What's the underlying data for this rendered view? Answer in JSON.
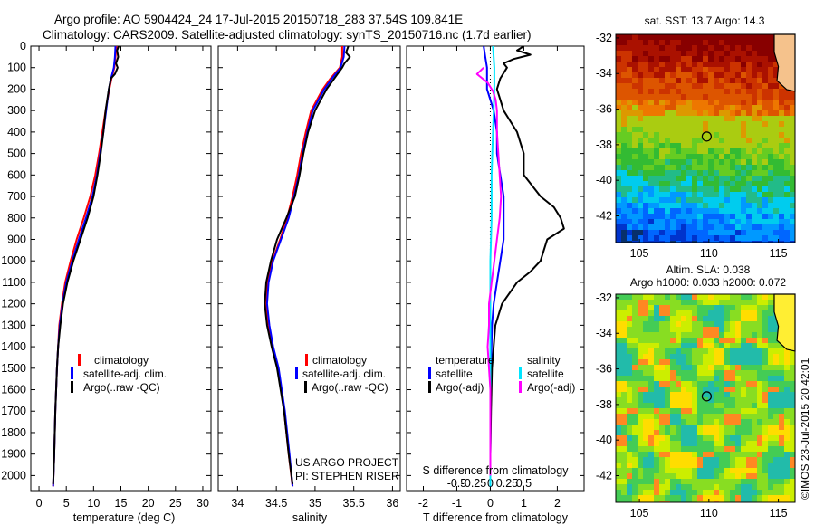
{
  "header": {
    "title_line1": "Argo profile: AO 5904424_24 17-Jul-2015 20150718_283 37.54S 109.841E",
    "title_line2": "Climatology: CARS2009. Satellite-adjusted climatology: synTS_20150716.nc (1.7d earlier)"
  },
  "credits": {
    "project": "US ARGO PROJECT",
    "pi": "PI: STEPHEN RISER",
    "stamp": "©IMOS 23-Jul-2015 20:42:01"
  },
  "colors": {
    "climatology": "#ff0000",
    "satellite": "#0000ff",
    "argo": "#000000",
    "satellite_s": "#00e5ff",
    "argo_s": "#ff00ff"
  },
  "chart_data": [
    {
      "type": "line",
      "name": "temperature-profile",
      "xlabel": "temperature (deg C)",
      "xlim": [
        -1.5,
        31.5
      ],
      "ylim": [
        2070,
        0
      ],
      "y_ticks": [
        0,
        100,
        200,
        300,
        400,
        500,
        600,
        700,
        800,
        900,
        1000,
        1100,
        1200,
        1300,
        1400,
        1500,
        1600,
        1700,
        1800,
        1900,
        2000
      ],
      "x_ticks": [
        0,
        5,
        10,
        15,
        20,
        25,
        30
      ],
      "legend": [
        "climatology",
        "satellite-adj. clim.",
        "Argo(..raw -QC)"
      ],
      "series": [
        {
          "name": "climatology",
          "color": "#ff0000",
          "depth": [
            0,
            50,
            100,
            150,
            200,
            300,
            400,
            500,
            600,
            700,
            800,
            900,
            1000,
            1100,
            1200,
            1300,
            1400,
            1500,
            1700,
            1900,
            2050
          ],
          "values": [
            14.2,
            14.0,
            13.8,
            13.3,
            12.9,
            12.2,
            11.6,
            11.0,
            10.3,
            9.4,
            8.2,
            6.9,
            5.8,
            4.8,
            4.2,
            3.7,
            3.5,
            3.3,
            3.0,
            2.8,
            2.6
          ]
        },
        {
          "name": "satellite-adj. clim.",
          "color": "#0000ff",
          "depth": [
            0,
            50,
            100,
            150,
            200,
            300,
            400,
            500,
            600,
            700,
            800,
            900,
            1000,
            1100,
            1200,
            1300,
            1400,
            1500,
            1700,
            1900,
            2050
          ],
          "values": [
            14.0,
            13.9,
            13.7,
            13.2,
            12.8,
            12.3,
            11.8,
            11.2,
            10.6,
            9.8,
            8.6,
            7.3,
            6.1,
            5.0,
            4.3,
            3.8,
            3.5,
            3.3,
            3.0,
            2.8,
            2.6
          ]
        },
        {
          "name": "Argo(..raw -QC)",
          "color": "#000000",
          "depth": [
            0,
            20,
            50,
            80,
            100,
            130,
            150,
            200,
            300,
            400,
            500,
            600,
            700,
            800,
            900,
            1000,
            1100,
            1200,
            1300,
            1400,
            1500,
            1700,
            1900,
            2040
          ],
          "values": [
            14.6,
            14.3,
            14.5,
            14.1,
            14.4,
            13.9,
            13.2,
            12.8,
            12.2,
            11.8,
            11.3,
            10.7,
            10.0,
            8.9,
            7.6,
            6.3,
            5.2,
            4.4,
            3.9,
            3.5,
            3.3,
            3.0,
            2.8,
            2.6
          ]
        }
      ]
    },
    {
      "type": "line",
      "name": "salinity-profile",
      "xlabel": "salinity",
      "xlim": [
        33.75,
        36.1
      ],
      "ylim": [
        2070,
        0
      ],
      "x_ticks": [
        34,
        34.5,
        35,
        35.5,
        36
      ],
      "legend": [
        "climatology",
        "satellite-adj. clim.",
        "Argo(..raw -QC)"
      ],
      "series": [
        {
          "name": "climatology",
          "color": "#ff0000",
          "depth": [
            0,
            50,
            100,
            150,
            200,
            300,
            400,
            500,
            600,
            700,
            800,
            900,
            1000,
            1100,
            1200,
            1300,
            1400,
            1500,
            1700,
            1900,
            2050
          ],
          "values": [
            35.35,
            35.35,
            35.32,
            35.2,
            35.1,
            34.95,
            34.88,
            34.82,
            34.77,
            34.71,
            34.64,
            34.55,
            34.45,
            34.39,
            34.37,
            34.4,
            34.45,
            34.52,
            34.6,
            34.66,
            34.71
          ]
        },
        {
          "name": "satellite-adj. clim.",
          "color": "#0000ff",
          "depth": [
            0,
            50,
            100,
            150,
            200,
            300,
            400,
            500,
            600,
            700,
            800,
            900,
            1000,
            1100,
            1200,
            1300,
            1400,
            1500,
            1700,
            1900,
            2050
          ],
          "values": [
            35.38,
            35.37,
            35.33,
            35.22,
            35.12,
            34.97,
            34.9,
            34.84,
            34.79,
            34.73,
            34.66,
            34.56,
            34.46,
            34.4,
            34.38,
            34.41,
            34.46,
            34.53,
            34.61,
            34.67,
            34.71
          ]
        },
        {
          "name": "Argo(..raw -QC)",
          "color": "#000000",
          "depth": [
            0,
            30,
            50,
            80,
            100,
            150,
            200,
            300,
            400,
            500,
            600,
            700,
            800,
            900,
            1000,
            1100,
            1200,
            1300,
            1400,
            1500,
            1700,
            1900,
            2040
          ],
          "values": [
            35.43,
            35.4,
            35.45,
            35.38,
            35.35,
            35.25,
            35.15,
            35.0,
            34.91,
            34.85,
            34.8,
            34.74,
            34.63,
            34.51,
            34.43,
            34.37,
            34.35,
            34.38,
            34.44,
            34.51,
            34.6,
            34.66,
            34.71
          ]
        }
      ]
    },
    {
      "type": "line",
      "name": "difference-profile",
      "xlabel": "T difference from climatology",
      "xlabel_top": "S difference from climatology",
      "xlim": [
        -2.5,
        2.8
      ],
      "x_ticks": [
        -2,
        -1,
        0,
        1,
        2
      ],
      "x_ticks_s": [
        -0.5,
        -0.25,
        0,
        0.25,
        0.5
      ],
      "ylim": [
        2070,
        0
      ],
      "legend_temperature": [
        "temperature",
        "satellite",
        "Argo(-adj)"
      ],
      "legend_salinity": [
        "salinity",
        "satellite",
        "Argo(-adj)"
      ],
      "series": [
        {
          "name": "T satellite",
          "color": "#0000ff",
          "depth": [
            0,
            50,
            100,
            200,
            300,
            400,
            500,
            600,
            700,
            800,
            900,
            1000,
            1100,
            1200,
            1300,
            1500,
            1700,
            1900,
            2050
          ],
          "values": [
            -0.2,
            -0.15,
            -0.1,
            -0.1,
            0.1,
            0.2,
            0.2,
            0.3,
            0.4,
            0.4,
            0.4,
            0.3,
            0.2,
            0.1,
            0.05,
            0.02,
            0.01,
            0.0,
            0.0
          ]
        },
        {
          "name": "T Argo(-adj)",
          "color": "#000000",
          "depth": [
            0,
            20,
            40,
            60,
            80,
            100,
            150,
            200,
            300,
            400,
            500,
            600,
            700,
            750,
            800,
            850,
            900,
            950,
            1000,
            1050,
            1100,
            1200,
            1300,
            1500,
            1700,
            1900,
            2040
          ],
          "values": [
            1.0,
            0.8,
            1.2,
            0.7,
            0.4,
            0.5,
            0.3,
            0.2,
            0.4,
            0.8,
            1.0,
            1.0,
            1.5,
            1.9,
            2.1,
            2.2,
            1.7,
            1.6,
            1.5,
            1.2,
            0.8,
            0.35,
            0.15,
            0.05,
            0.02,
            0.0,
            0.0
          ]
        },
        {
          "name": "S satellite",
          "color": "#00e5ff",
          "depth": [
            0,
            100,
            200,
            400,
            600,
            800,
            1000,
            1200,
            1400,
            1600,
            1800,
            2050
          ],
          "values": [
            0.02,
            0.03,
            0.03,
            0.02,
            0.01,
            0.01,
            0.0,
            0.0,
            0.0,
            0.0,
            0.0,
            0.0
          ]
        },
        {
          "name": "S Argo(-adj)",
          "color": "#ff00ff",
          "depth": [
            100,
            130,
            150,
            170,
            190,
            210,
            250,
            300,
            400,
            500,
            600,
            700,
            800,
            900,
            1000,
            1100,
            1200,
            1300,
            1400,
            1500,
            1600,
            1700,
            1800,
            1900,
            2000
          ],
          "values": [
            -0.05,
            -0.1,
            -0.06,
            -0.02,
            0.0,
            0.02,
            0.04,
            0.05,
            0.05,
            0.06,
            0.07,
            0.08,
            0.07,
            0.05,
            0.03,
            0.01,
            -0.01,
            -0.01,
            -0.02,
            -0.01,
            0.0,
            0.0,
            0.0,
            0.0,
            0.0
          ]
        }
      ]
    },
    {
      "type": "heatmap",
      "name": "sst-map",
      "title": "sat. SST: 13.7  Argo: 14.3",
      "x_ticks": [
        105,
        110,
        115
      ],
      "y_ticks": [
        -32,
        -34,
        -36,
        -38,
        -40,
        -42
      ],
      "xlim": [
        103.3,
        116.2
      ],
      "ylim": [
        -43.5,
        -31.8
      ],
      "marker": {
        "lon": 109.841,
        "lat": -37.54
      }
    },
    {
      "type": "heatmap",
      "name": "sla-map",
      "title_line1": "Altim. SLA: 0.038",
      "title_line2": "Argo h1000: 0.033  h2000: 0.072",
      "x_ticks": [
        105,
        110,
        115
      ],
      "y_ticks": [
        -32,
        -34,
        -36,
        -38,
        -40,
        -42
      ],
      "xlim": [
        103.3,
        116.2
      ],
      "ylim": [
        -43.5,
        -31.8
      ],
      "marker": {
        "lon": 109.841,
        "lat": -37.54
      }
    }
  ]
}
